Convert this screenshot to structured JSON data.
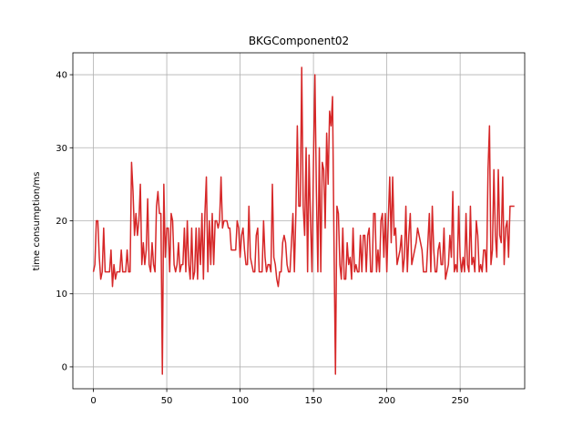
{
  "chart_data": {
    "type": "line",
    "title": "BKGComponent02",
    "xlabel": "",
    "ylabel": "time consumption/ms",
    "xlim": [
      -14,
      294
    ],
    "ylim": [
      -3,
      43
    ],
    "xticks": [
      0,
      50,
      100,
      150,
      200,
      250
    ],
    "yticks": [
      0,
      10,
      20,
      30,
      40
    ],
    "grid": true,
    "colors": {
      "line": "#d62728",
      "grid": "#b0b0b0",
      "axis": "#000000"
    },
    "series": [
      {
        "values": [
          13,
          14,
          20,
          20,
          15,
          12,
          13,
          19,
          13,
          13,
          13,
          13,
          16,
          11,
          14,
          12,
          13,
          13,
          13,
          16,
          13,
          13,
          13,
          16,
          13,
          13,
          28,
          24,
          18,
          21,
          18,
          20,
          25,
          14,
          17,
          14,
          16,
          23,
          14,
          13,
          17,
          14,
          13,
          22,
          24,
          21,
          21,
          -1,
          25,
          15,
          19,
          19,
          13,
          21,
          20,
          14,
          13,
          14,
          17,
          13,
          14,
          14,
          19,
          13,
          20,
          14,
          12,
          19,
          12,
          13,
          19,
          12,
          19,
          14,
          21,
          12,
          21,
          26,
          13,
          20,
          14,
          21,
          14,
          20,
          20,
          19,
          20,
          26,
          19,
          20,
          20,
          20,
          19,
          19,
          16,
          16,
          16,
          16,
          20,
          19,
          15,
          18,
          19,
          16,
          14,
          14,
          22,
          15,
          14,
          13,
          13,
          18,
          19,
          13,
          13,
          13,
          20,
          15,
          13,
          14,
          14,
          13,
          25,
          15,
          14,
          12,
          11,
          13,
          13,
          17,
          18,
          17,
          14,
          13,
          13,
          17,
          21,
          13,
          21,
          33,
          22,
          22,
          41,
          22,
          18,
          30,
          13,
          29,
          20,
          13,
          28,
          40,
          24,
          13,
          30,
          13,
          28,
          27,
          19,
          32,
          25,
          35,
          33,
          37,
          17,
          -1,
          22,
          21,
          14,
          12,
          19,
          12,
          12,
          17,
          14,
          15,
          12,
          19,
          13,
          14,
          13,
          13,
          18,
          13,
          18,
          18,
          13,
          18,
          19,
          13,
          13,
          21,
          21,
          13,
          16,
          13,
          20,
          21,
          15,
          21,
          13,
          20,
          26,
          17,
          26,
          18,
          19,
          14,
          15,
          16,
          18,
          13,
          15,
          22,
          13,
          18,
          21,
          14,
          15,
          16,
          17,
          19,
          18,
          17,
          16,
          13,
          13,
          13,
          17,
          21,
          13,
          22,
          16,
          13,
          13,
          16,
          17,
          14,
          14,
          19,
          12,
          13,
          14,
          18,
          15,
          24,
          13,
          14,
          13,
          22,
          15,
          13,
          15,
          13,
          21,
          14,
          13,
          22,
          14,
          15,
          13,
          20,
          18,
          13,
          14,
          13,
          16,
          16,
          13,
          27,
          33,
          14,
          16,
          27,
          18,
          15,
          27,
          18,
          17,
          26,
          14,
          19,
          20,
          15,
          22,
          22,
          22,
          22
        ]
      }
    ]
  }
}
